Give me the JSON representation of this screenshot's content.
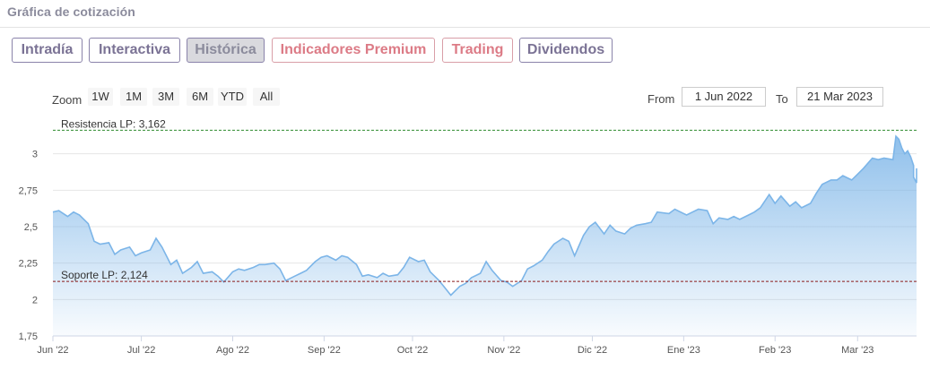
{
  "header": {
    "title": "Gráfica de cotización"
  },
  "tabs": [
    {
      "label": "Intradía",
      "state": "normal"
    },
    {
      "label": "Interactiva",
      "state": "normal"
    },
    {
      "label": "Histórica",
      "state": "active"
    },
    {
      "label": "Indicadores Premium",
      "state": "premium"
    },
    {
      "label": "Trading",
      "state": "premium"
    },
    {
      "label": "Dividendos",
      "state": "normal"
    }
  ],
  "toolbar": {
    "zoom_label": "Zoom",
    "zoom_buttons": [
      "1W",
      "1M",
      "3M",
      "6M",
      "YTD",
      "All"
    ],
    "from_label": "From",
    "from_value": "1 Jun 2022",
    "to_label": "To",
    "to_value": "21 Mar 2023"
  },
  "colors": {
    "line": "#7cb5e8",
    "fill_top": "#7cb5e8",
    "resistance_line": "#2e8b2e",
    "support_line": "#8b1a1a",
    "tab_border": "#8a83aa",
    "premium_border": "#d99ea7"
  },
  "chart_data": {
    "type": "area",
    "title": "",
    "xlabel": "",
    "ylabel": "",
    "x_tick_labels": [
      "Jun '22",
      "Jul '22",
      "Ago '22",
      "Sep '22",
      "Oct '22",
      "Nov '22",
      "Dic '22",
      "Ene '23",
      "Feb '23",
      "Mar '23"
    ],
    "x_tick_dates": [
      "2022-06-01",
      "2022-07-01",
      "2022-08-01",
      "2022-09-01",
      "2022-10-01",
      "2022-11-01",
      "2022-12-01",
      "2023-01-01",
      "2023-02-01",
      "2023-03-01"
    ],
    "y_tick_labels": [
      "1,75",
      "2",
      "2,25",
      "2,5",
      "2,75",
      "3"
    ],
    "y_ticks": [
      1.75,
      2,
      2.25,
      2.5,
      2.75,
      3
    ],
    "ylim": [
      1.75,
      3.25
    ],
    "xlim": [
      "2022-06-01",
      "2023-03-21"
    ],
    "grid": true,
    "reference_lines": [
      {
        "label": "Resistencia LP: 3,162",
        "value": 3.162,
        "style": "dashed-green"
      },
      {
        "label": "Soporte LP: 2,124",
        "value": 2.124,
        "style": "dashed-red"
      }
    ],
    "series": [
      {
        "name": "",
        "points": [
          [
            "2022-06-01",
            2.6
          ],
          [
            "2022-06-03",
            2.61
          ],
          [
            "2022-06-06",
            2.57
          ],
          [
            "2022-06-08",
            2.6
          ],
          [
            "2022-06-10",
            2.58
          ],
          [
            "2022-06-13",
            2.52
          ],
          [
            "2022-06-15",
            2.4
          ],
          [
            "2022-06-17",
            2.38
          ],
          [
            "2022-06-20",
            2.39
          ],
          [
            "2022-06-22",
            2.31
          ],
          [
            "2022-06-24",
            2.34
          ],
          [
            "2022-06-27",
            2.36
          ],
          [
            "2022-06-29",
            2.3
          ],
          [
            "2022-07-01",
            2.32
          ],
          [
            "2022-07-04",
            2.34
          ],
          [
            "2022-07-06",
            2.42
          ],
          [
            "2022-07-08",
            2.36
          ],
          [
            "2022-07-11",
            2.24
          ],
          [
            "2022-07-13",
            2.27
          ],
          [
            "2022-07-15",
            2.18
          ],
          [
            "2022-07-18",
            2.22
          ],
          [
            "2022-07-20",
            2.26
          ],
          [
            "2022-07-22",
            2.18
          ],
          [
            "2022-07-25",
            2.19
          ],
          [
            "2022-07-27",
            2.16
          ],
          [
            "2022-07-29",
            2.12
          ],
          [
            "2022-08-01",
            2.19
          ],
          [
            "2022-08-03",
            2.21
          ],
          [
            "2022-08-05",
            2.2
          ],
          [
            "2022-08-08",
            2.22
          ],
          [
            "2022-08-10",
            2.24
          ],
          [
            "2022-08-12",
            2.24
          ],
          [
            "2022-08-15",
            2.25
          ],
          [
            "2022-08-17",
            2.21
          ],
          [
            "2022-08-19",
            2.13
          ],
          [
            "2022-08-22",
            2.16
          ],
          [
            "2022-08-24",
            2.18
          ],
          [
            "2022-08-26",
            2.2
          ],
          [
            "2022-08-29",
            2.26
          ],
          [
            "2022-08-31",
            2.29
          ],
          [
            "2022-09-02",
            2.3
          ],
          [
            "2022-09-05",
            2.27
          ],
          [
            "2022-09-07",
            2.3
          ],
          [
            "2022-09-09",
            2.29
          ],
          [
            "2022-09-12",
            2.24
          ],
          [
            "2022-09-14",
            2.16
          ],
          [
            "2022-09-16",
            2.17
          ],
          [
            "2022-09-19",
            2.15
          ],
          [
            "2022-09-21",
            2.18
          ],
          [
            "2022-09-23",
            2.16
          ],
          [
            "2022-09-26",
            2.17
          ],
          [
            "2022-09-28",
            2.22
          ],
          [
            "2022-09-30",
            2.29
          ],
          [
            "2022-10-03",
            2.26
          ],
          [
            "2022-10-05",
            2.27
          ],
          [
            "2022-10-07",
            2.19
          ],
          [
            "2022-10-10",
            2.13
          ],
          [
            "2022-10-12",
            2.08
          ],
          [
            "2022-10-14",
            2.03
          ],
          [
            "2022-10-17",
            2.09
          ],
          [
            "2022-10-19",
            2.11
          ],
          [
            "2022-10-21",
            2.15
          ],
          [
            "2022-10-24",
            2.18
          ],
          [
            "2022-10-26",
            2.26
          ],
          [
            "2022-10-28",
            2.2
          ],
          [
            "2022-10-31",
            2.13
          ],
          [
            "2022-11-02",
            2.12
          ],
          [
            "2022-11-04",
            2.09
          ],
          [
            "2022-11-07",
            2.13
          ],
          [
            "2022-11-09",
            2.21
          ],
          [
            "2022-11-11",
            2.23
          ],
          [
            "2022-11-14",
            2.27
          ],
          [
            "2022-11-16",
            2.33
          ],
          [
            "2022-11-18",
            2.38
          ],
          [
            "2022-11-21",
            2.42
          ],
          [
            "2022-11-23",
            2.4
          ],
          [
            "2022-11-25",
            2.3
          ],
          [
            "2022-11-28",
            2.44
          ],
          [
            "2022-11-30",
            2.5
          ],
          [
            "2022-12-02",
            2.53
          ],
          [
            "2022-12-05",
            2.45
          ],
          [
            "2022-12-07",
            2.51
          ],
          [
            "2022-12-09",
            2.47
          ],
          [
            "2022-12-12",
            2.45
          ],
          [
            "2022-12-14",
            2.49
          ],
          [
            "2022-12-16",
            2.51
          ],
          [
            "2022-12-19",
            2.52
          ],
          [
            "2022-12-21",
            2.53
          ],
          [
            "2022-12-23",
            2.6
          ],
          [
            "2022-12-27",
            2.59
          ],
          [
            "2022-12-29",
            2.62
          ],
          [
            "2023-01-02",
            2.58
          ],
          [
            "2023-01-04",
            2.6
          ],
          [
            "2023-01-06",
            2.62
          ],
          [
            "2023-01-09",
            2.61
          ],
          [
            "2023-01-11",
            2.52
          ],
          [
            "2023-01-13",
            2.56
          ],
          [
            "2023-01-16",
            2.55
          ],
          [
            "2023-01-18",
            2.57
          ],
          [
            "2023-01-20",
            2.55
          ],
          [
            "2023-01-23",
            2.58
          ],
          [
            "2023-01-25",
            2.6
          ],
          [
            "2023-01-27",
            2.63
          ],
          [
            "2023-01-30",
            2.72
          ],
          [
            "2023-02-01",
            2.66
          ],
          [
            "2023-02-03",
            2.71
          ],
          [
            "2023-02-06",
            2.64
          ],
          [
            "2023-02-08",
            2.67
          ],
          [
            "2023-02-10",
            2.63
          ],
          [
            "2023-02-13",
            2.66
          ],
          [
            "2023-02-15",
            2.73
          ],
          [
            "2023-02-17",
            2.79
          ],
          [
            "2023-02-20",
            2.82
          ],
          [
            "2023-02-22",
            2.82
          ],
          [
            "2023-02-24",
            2.85
          ],
          [
            "2023-02-27",
            2.82
          ],
          [
            "2023-03-01",
            2.86
          ],
          [
            "2023-03-03",
            2.9
          ],
          [
            "2023-03-06",
            2.97
          ],
          [
            "2023-03-08",
            2.96
          ],
          [
            "2023-03-10",
            2.97
          ],
          [
            "2023-03-13",
            2.96
          ],
          [
            "2023-03-14",
            3.12
          ],
          [
            "2023-03-15",
            3.1
          ],
          [
            "2023-03-16",
            3.04
          ],
          [
            "2023-03-17",
            3.0
          ],
          [
            "2023-03-18",
            3.02
          ],
          [
            "2023-03-19",
            2.98
          ],
          [
            "2023-03-20",
            2.92
          ],
          [
            "2023-03-20",
            2.84
          ],
          [
            "2023-03-21",
            2.8
          ],
          [
            "2023-03-21",
            2.9
          ]
        ]
      }
    ]
  }
}
